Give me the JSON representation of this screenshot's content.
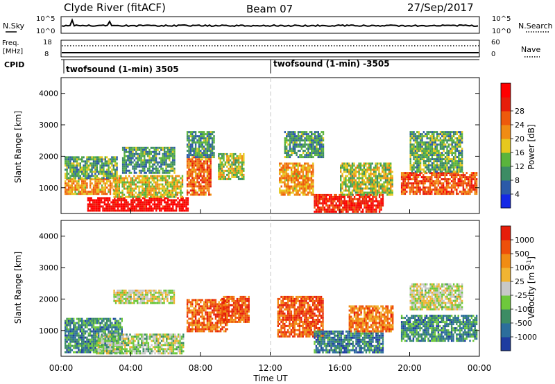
{
  "header": {
    "title": "Clyde River (fitACF)",
    "beam": "Beam 07",
    "date": "27/Sep/2017"
  },
  "top_panels": {
    "nsky_label": "N.Sky",
    "nsearch_label": "N.Search",
    "nsky_ticks_left": [
      "10^5",
      "10^0"
    ],
    "nsky_ticks_right": [
      "10^5",
      "10^0"
    ],
    "freq_label_top": "Freq.",
    "freq_label_bottom": "[MHz]",
    "freq_ticks_left": [
      "18",
      "8"
    ],
    "nave_label": "Nave",
    "nave_ticks_right": [
      "60",
      "0"
    ],
    "cpid_label": "CPID",
    "cpid_segments": [
      "twofsound (1-min) 3505",
      "twofsound (1-min) -3505"
    ]
  },
  "chart_data": [
    {
      "type": "heatmap",
      "quantity": "Power",
      "ylabel": "Slant Range [km]",
      "y_ticks": [
        "1000",
        "2000",
        "3000",
        "4000"
      ],
      "ylim": [
        180,
        4500
      ],
      "xlim_hours": [
        0,
        24
      ],
      "colorbar_label": "Power [dB]",
      "colorbar_ticks": [
        "4",
        "8",
        "12",
        "16",
        "20",
        "24",
        "28"
      ],
      "colorbar_colors": [
        "#1428e6",
        "#2c5aa8",
        "#3c8c64",
        "#5ab43c",
        "#e6c81e",
        "#f08c14",
        "#ee5a0c",
        "#e61e0a",
        "#ff0000"
      ],
      "blocks": [
        {
          "t0": 0.2,
          "t1": 3.2,
          "r0": 800,
          "r1": 1300,
          "v": 0.6
        },
        {
          "t0": 0.2,
          "t1": 3.2,
          "r0": 1300,
          "r1": 2000,
          "v": 0.35
        },
        {
          "t0": 1.5,
          "t1": 7.3,
          "r0": 250,
          "r1": 700,
          "v": 0.95
        },
        {
          "t0": 3.0,
          "t1": 7.0,
          "r0": 700,
          "r1": 1400,
          "v": 0.5
        },
        {
          "t0": 3.5,
          "t1": 6.5,
          "r0": 1500,
          "r1": 2300,
          "v": 0.3
        },
        {
          "t0": 7.2,
          "t1": 8.6,
          "r0": 800,
          "r1": 2000,
          "v": 0.7
        },
        {
          "t0": 7.2,
          "t1": 8.8,
          "r0": 2000,
          "r1": 2800,
          "v": 0.3
        },
        {
          "t0": 9.0,
          "t1": 10.5,
          "r0": 1300,
          "r1": 2100,
          "v": 0.45
        },
        {
          "t0": 12.5,
          "t1": 14.5,
          "r0": 800,
          "r1": 1800,
          "v": 0.6
        },
        {
          "t0": 12.8,
          "t1": 15.0,
          "r0": 2000,
          "r1": 2800,
          "v": 0.3
        },
        {
          "t0": 14.5,
          "t1": 18.5,
          "r0": 250,
          "r1": 800,
          "v": 0.85
        },
        {
          "t0": 16.0,
          "t1": 19.0,
          "r0": 800,
          "r1": 1800,
          "v": 0.45
        },
        {
          "t0": 19.5,
          "t1": 23.8,
          "r0": 800,
          "r1": 1500,
          "v": 0.75
        },
        {
          "t0": 20.0,
          "t1": 23.0,
          "r0": 1500,
          "r1": 2800,
          "v": 0.35
        }
      ]
    },
    {
      "type": "heatmap",
      "quantity": "Velocity",
      "ylabel": "Slant Range [km]",
      "y_ticks": [
        "1000",
        "2000",
        "3000",
        "4000"
      ],
      "ylim": [
        180,
        4500
      ],
      "xlim_hours": [
        0,
        24
      ],
      "colorbar_label": "Velocity [m s",
      "colorbar_label_sup": "-1",
      "colorbar_label_end": "]",
      "colorbar_ticks": [
        "1000",
        "500",
        "100",
        "25",
        "-25",
        "-100",
        "-500",
        "-1000"
      ],
      "colorbar_colors": [
        "#1e3ca0",
        "#2c6e9c",
        "#3c8c64",
        "#6ec83c",
        "#c8c8c8",
        "#f0b432",
        "#f08c14",
        "#ee500a",
        "#e61e0a"
      ],
      "x_ticks": [
        "00:00",
        "04:00",
        "08:00",
        "12:00",
        "16:00",
        "20:00",
        "00:00"
      ],
      "xlabel": "Time UT",
      "blocks": [
        {
          "t0": 0.2,
          "t1": 3.5,
          "r0": 300,
          "r1": 1400,
          "v": 0.25
        },
        {
          "t0": 2.0,
          "t1": 7.0,
          "r0": 300,
          "r1": 900,
          "v": 0.45
        },
        {
          "t0": 3.0,
          "t1": 6.5,
          "r0": 1900,
          "r1": 2300,
          "v": 0.5
        },
        {
          "t0": 7.2,
          "t1": 9.5,
          "r0": 1000,
          "r1": 2000,
          "v": 0.8
        },
        {
          "t0": 9.2,
          "t1": 10.8,
          "r0": 1300,
          "r1": 2100,
          "v": 0.85
        },
        {
          "t0": 12.4,
          "t1": 15.0,
          "r0": 800,
          "r1": 2100,
          "v": 0.85
        },
        {
          "t0": 14.5,
          "t1": 18.5,
          "r0": 300,
          "r1": 1000,
          "v": 0.2
        },
        {
          "t0": 16.5,
          "t1": 19.0,
          "r0": 1000,
          "r1": 1800,
          "v": 0.75
        },
        {
          "t0": 19.5,
          "t1": 23.8,
          "r0": 700,
          "r1": 1500,
          "v": 0.25
        },
        {
          "t0": 20.0,
          "t1": 23.0,
          "r0": 1700,
          "r1": 2500,
          "v": 0.5
        }
      ]
    }
  ]
}
